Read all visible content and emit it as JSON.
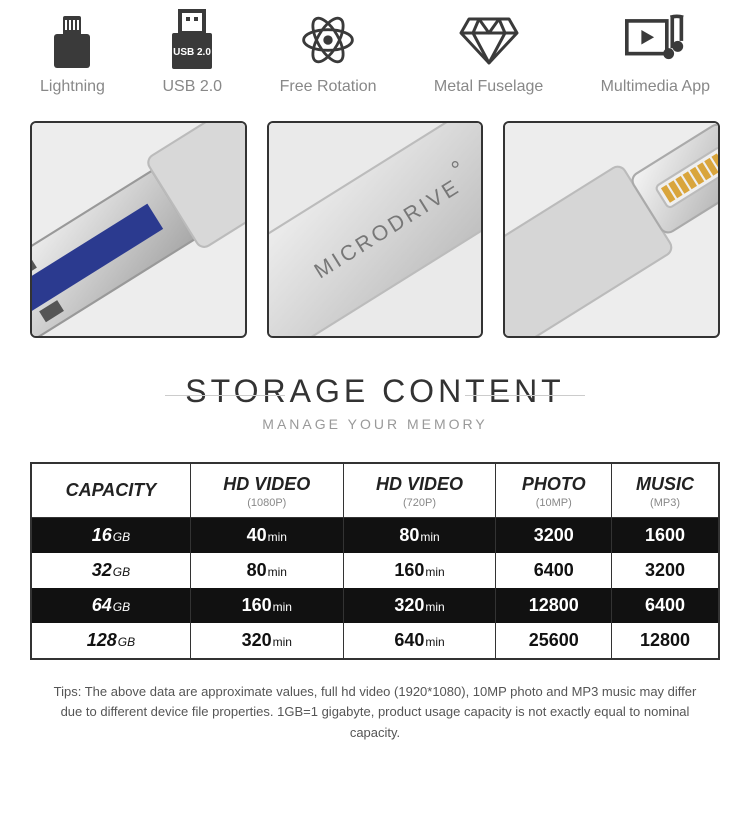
{
  "features": [
    {
      "label": "Lightning"
    },
    {
      "label": "USB 2.0",
      "badge": "USB 2.0"
    },
    {
      "label": "Free Rotation"
    },
    {
      "label": "Metal Fuselage"
    },
    {
      "label": "Multimedia App"
    }
  ],
  "brand_text": "MICRODRIVE",
  "section": {
    "title": "STORAGE CONTENT",
    "subtitle": "MANAGE YOUR MEMORY"
  },
  "table": {
    "columns": [
      {
        "label": "CAPACITY",
        "sub": ""
      },
      {
        "label": "HD VIDEO",
        "sub": "(1080P)"
      },
      {
        "label": "HD VIDEO",
        "sub": "(720P)"
      },
      {
        "label": "PHOTO",
        "sub": "(10MP)"
      },
      {
        "label": "MUSIC",
        "sub": "(MP3)"
      }
    ],
    "rows": [
      {
        "capacity": "16",
        "cap_unit": "GB",
        "v1080": "40",
        "v1080_unit": "min",
        "v720": "80",
        "v720_unit": "min",
        "photo": "3200",
        "music": "1600",
        "style": "dark"
      },
      {
        "capacity": "32",
        "cap_unit": "GB",
        "v1080": "80",
        "v1080_unit": "min",
        "v720": "160",
        "v720_unit": "min",
        "photo": "6400",
        "music": "3200",
        "style": "light"
      },
      {
        "capacity": "64",
        "cap_unit": "GB",
        "v1080": "160",
        "v1080_unit": "min",
        "v720": "320",
        "v720_unit": "min",
        "photo": "12800",
        "music": "6400",
        "style": "dark"
      },
      {
        "capacity": "128",
        "cap_unit": "GB",
        "v1080": "320",
        "v1080_unit": "min",
        "v720": "640",
        "v720_unit": "min",
        "photo": "25600",
        "music": "12800",
        "style": "light"
      }
    ]
  },
  "tips": "Tips: The above data are approximate values, full hd video (1920*1080), 10MP photo and MP3 music may differ due to different device file properties. 1GB=1 gigabyte, product usage capacity is not exactly equal to nominal capacity.",
  "colors": {
    "icon": "#3a3a3a",
    "label": "#888888",
    "dark_row": "#111111",
    "border": "#333333"
  }
}
